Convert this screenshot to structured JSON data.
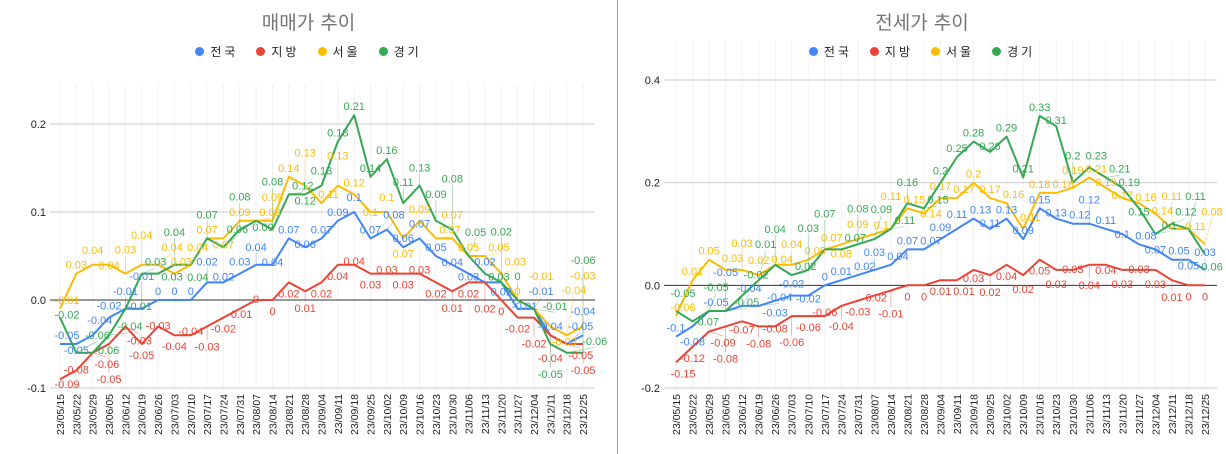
{
  "chart_data": [
    {
      "type": "line",
      "title": "매매가 추이",
      "legend_position": "top",
      "grid": true,
      "ylim": [
        -0.1,
        0.2
      ],
      "yticks": [
        "0.2",
        "0.1",
        "0.0",
        "-0.1"
      ],
      "categories": [
        "23/05/15",
        "23/05/22",
        "23/05/29",
        "23/06/05",
        "23/06/12",
        "23/06/19",
        "23/06/26",
        "23/07/03",
        "23/07/10",
        "23/07/17",
        "23/07/24",
        "23/07/31",
        "23/08/07",
        "23/08/14",
        "23/08/21",
        "23/08/28",
        "23/09/04",
        "23/09/11",
        "23/09/18",
        "23/09/25",
        "23/10/02",
        "23/10/09",
        "23/10/16",
        "23/10/23",
        "23/10/30",
        "23/11/06",
        "23/11/13",
        "23/11/20",
        "23/11/27",
        "23/12/04",
        "23/12/11",
        "23/12/18",
        "23/12/25"
      ],
      "series": [
        {
          "name": "전국",
          "color": "#4285f4",
          "values": [
            -0.05,
            -0.05,
            -0.04,
            -0.02,
            -0.01,
            -0.01,
            0,
            0,
            0,
            0.02,
            0.02,
            0.03,
            0.04,
            0.04,
            0.07,
            0.06,
            0.07,
            0.09,
            0.1,
            0.07,
            0.08,
            0.06,
            0.07,
            0.05,
            0.04,
            0.03,
            0.02,
            0.02,
            -0.01,
            -0.01,
            -0.04,
            -0.05,
            -0.04
          ]
        },
        {
          "name": "지방",
          "color": "#ea4335",
          "values": [
            -0.09,
            -0.08,
            -0.06,
            -0.05,
            -0.03,
            -0.05,
            -0.03,
            -0.04,
            -0.04,
            -0.03,
            -0.02,
            -0.01,
            0,
            0,
            0.02,
            0.01,
            0.02,
            0.04,
            0.04,
            0.03,
            0.03,
            0.03,
            0.03,
            0.02,
            0.01,
            0.02,
            0.02,
            0,
            -0.02,
            -0.02,
            -0.04,
            -0.05,
            -0.05
          ]
        },
        {
          "name": "서울",
          "color": "#fbbc04",
          "values": [
            -0.01,
            0.03,
            0.04,
            0.04,
            0.03,
            0.04,
            0.04,
            0.03,
            0.04,
            0.07,
            0.07,
            0.09,
            0.09,
            0.09,
            0.14,
            0.13,
            0.11,
            0.13,
            0.12,
            0.1,
            0.1,
            0.07,
            0.09,
            0.07,
            0.07,
            0.05,
            0.05,
            0.03,
            0,
            -0.01,
            -0.03,
            -0.04,
            -0.03
          ]
        },
        {
          "name": "경기",
          "color": "#34a853",
          "values": [
            -0.02,
            -0.06,
            -0.06,
            -0.04,
            -0.01,
            0.03,
            0.03,
            0.04,
            0.04,
            0.07,
            0.06,
            0.08,
            0.09,
            0.08,
            0.12,
            0.12,
            0.13,
            0.18,
            0.21,
            0.14,
            0.16,
            0.11,
            0.13,
            0.09,
            0.08,
            0.05,
            0.03,
            0.02,
            0,
            -0.01,
            -0.05,
            -0.06,
            -0.06
          ]
        }
      ]
    },
    {
      "type": "line",
      "title": "전세가 추이",
      "legend_position": "top",
      "grid": true,
      "ylim": [
        -0.2,
        0.4
      ],
      "yticks": [
        "0.4",
        "0.2",
        "0.0",
        "-0.2"
      ],
      "categories": [
        "23/05/15",
        "23/05/22",
        "23/05/29",
        "23/06/05",
        "23/06/12",
        "23/06/19",
        "23/06/26",
        "23/07/03",
        "23/07/10",
        "23/07/17",
        "23/07/24",
        "23/07/31",
        "23/08/07",
        "23/08/14",
        "23/08/21",
        "23/08/28",
        "23/09/04",
        "23/09/11",
        "23/09/18",
        "23/09/25",
        "23/10/02",
        "23/10/09",
        "23/10/16",
        "23/10/23",
        "23/10/30",
        "23/11/06",
        "23/11/13",
        "23/11/20",
        "23/11/27",
        "23/12/04",
        "23/12/11",
        "23/12/18",
        "23/12/25"
      ],
      "series": [
        {
          "name": "전국",
          "color": "#4285f4",
          "values": [
            -0.1,
            -0.08,
            -0.05,
            -0.05,
            -0.04,
            -0.04,
            -0.03,
            -0.02,
            -0.02,
            0,
            0.01,
            0.02,
            0.03,
            0.04,
            0.07,
            0.07,
            0.09,
            0.11,
            0.13,
            0.11,
            0.13,
            0.09,
            0.15,
            0.13,
            0.12,
            0.12,
            0.11,
            0.1,
            0.08,
            0.07,
            0.05,
            0.05,
            0.03
          ]
        },
        {
          "name": "지방",
          "color": "#ea4335",
          "values": [
            -0.15,
            -0.12,
            -0.09,
            -0.08,
            -0.07,
            -0.08,
            -0.08,
            -0.06,
            -0.06,
            -0.06,
            -0.04,
            -0.03,
            -0.02,
            -0.01,
            0,
            0,
            0.01,
            0.01,
            0.03,
            0.02,
            0.04,
            0.02,
            0.05,
            0.03,
            0.03,
            0.04,
            0.04,
            0.03,
            0.03,
            0.03,
            0.01,
            0,
            0
          ]
        },
        {
          "name": "서울",
          "color": "#fbbc04",
          "values": [
            -0.06,
            0.01,
            0.05,
            0.03,
            0.03,
            0.02,
            0.04,
            0.04,
            0.05,
            0.07,
            0.08,
            0.09,
            0.1,
            0.11,
            0.15,
            0.14,
            0.17,
            0.17,
            0.2,
            0.17,
            0.16,
            0.11,
            0.18,
            0.18,
            0.19,
            0.21,
            0.19,
            0.17,
            0.16,
            0.14,
            0.11,
            0.11,
            0.08
          ]
        },
        {
          "name": "경기",
          "color": "#34a853",
          "values": [
            -0.05,
            -0.07,
            -0.05,
            -0.05,
            -0.02,
            0.01,
            0.04,
            0.02,
            0.03,
            0.07,
            0.07,
            0.08,
            0.09,
            0.11,
            0.16,
            0.15,
            0.2,
            0.25,
            0.28,
            0.26,
            0.29,
            0.21,
            0.33,
            0.31,
            0.2,
            0.23,
            0.21,
            0.19,
            0.15,
            0.1,
            0.12,
            0.11,
            0.06
          ]
        }
      ]
    }
  ]
}
